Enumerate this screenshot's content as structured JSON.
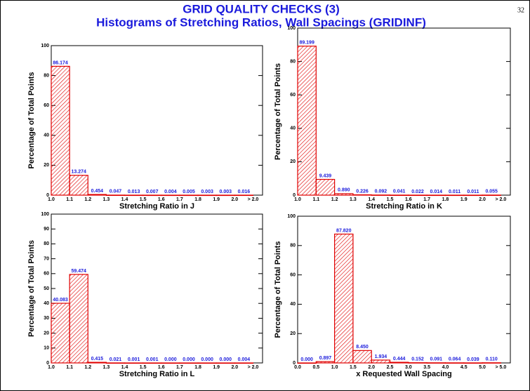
{
  "page_number": "32",
  "title": "GRID QUALITY CHECKS (3)",
  "subtitle": "Histograms of Stretching Ratios, Wall Spacings (GRIDINF)",
  "chart_data": [
    {
      "type": "histogram",
      "xlabel": "Stretching Ratio in J",
      "ylabel": "Percentage of Total Points",
      "bin_labels": [
        "1.0",
        "1.1",
        "1.2",
        "1.3",
        "1.4",
        "1.5",
        "1.6",
        "1.7",
        "1.8",
        "1.9",
        "2.0",
        "> 2.0"
      ],
      "values": [
        86.174,
        13.274,
        0.454,
        0.047,
        0.013,
        0.007,
        0.004,
        0.005,
        0.003,
        0.003,
        0.016
      ],
      "value_labels": [
        "86.174",
        "13.274",
        "0.454",
        "0.047",
        "0.013",
        "0.007",
        "0.004",
        "0.005",
        "0.003",
        "0.003",
        "0.016"
      ],
      "color": "#e00000",
      "label_color": "#1a1adc",
      "ylim": [
        0,
        100
      ],
      "yticks": [
        0,
        20,
        40,
        60,
        80,
        100
      ]
    },
    {
      "type": "histogram",
      "xlabel": "Stretching Ratio in K",
      "ylabel": "Percentage of Total Points",
      "bin_labels": [
        "1.0",
        "1.1",
        "1.2",
        "1.3",
        "1.4",
        "1.5",
        "1.6",
        "1.7",
        "1.8",
        "1.9",
        "2.0",
        "> 2.0"
      ],
      "values": [
        89.199,
        9.439,
        0.89,
        0.226,
        0.092,
        0.041,
        0.022,
        0.014,
        0.011,
        0.011,
        0.055
      ],
      "value_labels": [
        "89.199",
        "9.439",
        "0.890",
        "0.226",
        "0.092",
        "0.041",
        "0.022",
        "0.014",
        "0.011",
        "0.011",
        "0.055"
      ],
      "color": "#e00000",
      "label_color": "#1a1adc",
      "ylim": [
        0,
        100
      ],
      "yticks": [
        0,
        20,
        40,
        60,
        80,
        100
      ]
    },
    {
      "type": "histogram",
      "xlabel": "Stretching Ratio in L",
      "ylabel": "Percentage of Total Points",
      "bin_labels": [
        "1.0",
        "1.1",
        "1.2",
        "1.3",
        "1.4",
        "1.5",
        "1.6",
        "1.7",
        "1.8",
        "1.9",
        "2.0",
        "> 2.0"
      ],
      "values": [
        40.083,
        59.474,
        0.415,
        0.021,
        0.001,
        0.001,
        0,
        0,
        0,
        0,
        0.004
      ],
      "value_labels": [
        "40.083",
        "59.474",
        "0.415",
        "0.021",
        "0.001",
        "0.001",
        "0.000",
        "0.000",
        "0.000",
        "0.000",
        "0.004"
      ],
      "color": "#e00000",
      "label_color": "#1a1adc",
      "ylim": [
        0,
        100
      ],
      "yticks": [
        0,
        10,
        20,
        30,
        40,
        50,
        60,
        70,
        80,
        90,
        100
      ]
    },
    {
      "type": "histogram",
      "xlabel": "x Requested Wall Spacing",
      "ylabel": "Percentage of Total Points",
      "bin_labels": [
        "0.0",
        "0.5",
        "1.0",
        "1.5",
        "2.0",
        "2.5",
        "3.0",
        "3.5",
        "4.0",
        "4.5",
        "5.0",
        "> 5.0"
      ],
      "values": [
        0,
        0.897,
        87.82,
        8.45,
        1.934,
        0.444,
        0.152,
        0.091,
        0.064,
        0.039,
        0.11
      ],
      "value_labels": [
        "0.000",
        "0.897",
        "87.820",
        "8.450",
        "1.934",
        "0.444",
        "0.152",
        "0.091",
        "0.064",
        "0.039",
        "0.110"
      ],
      "color": "#e00000",
      "label_color": "#1a1adc",
      "ylim": [
        0,
        100
      ],
      "yticks": [
        0,
        20,
        40,
        60,
        80,
        100
      ]
    }
  ]
}
